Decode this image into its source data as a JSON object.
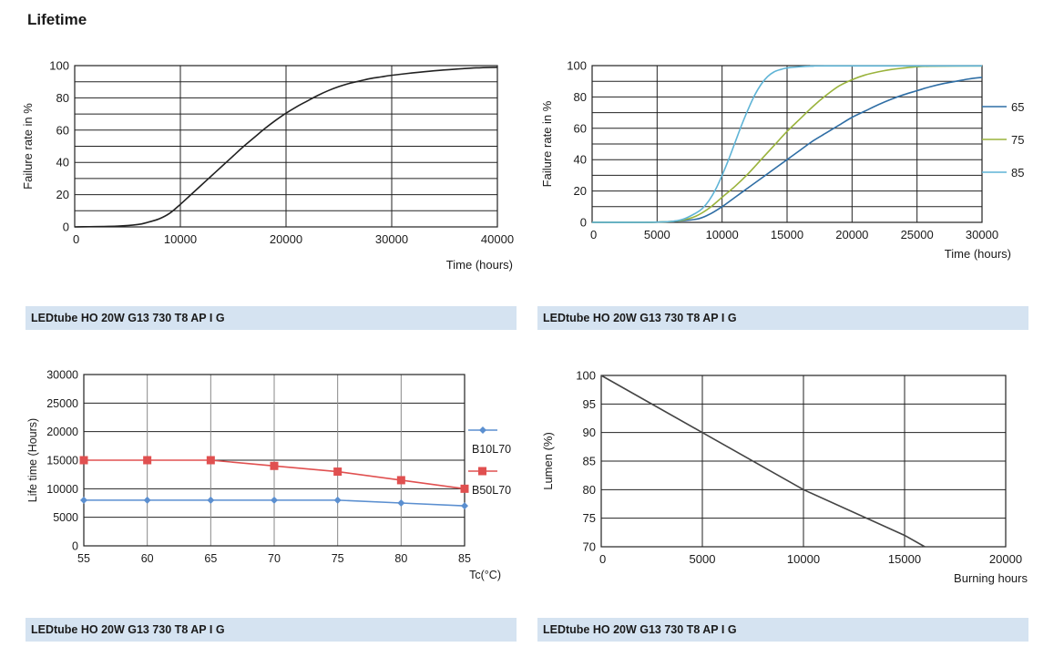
{
  "page_title": "Lifetime",
  "captions": [
    "LEDtube HO 20W G13 730 T8 AP I G",
    "LEDtube HO 20W G13 730 T8 AP I G",
    "LEDtube HO 20W G13 730 T8 AP I G",
    "LEDtube HO 20W G13 730 T8 AP I G"
  ],
  "chart_data": [
    {
      "type": "line",
      "title": "",
      "xlabel": "Time (hours)",
      "ylabel": "Failure rate in %",
      "xlim": [
        0,
        40000
      ],
      "ylim": [
        0,
        100
      ],
      "xticks": [
        0,
        10000,
        20000,
        30000,
        40000
      ],
      "yticks": [
        0,
        20,
        40,
        60,
        80,
        100
      ],
      "grid": true,
      "series": [
        {
          "name": "",
          "color": "#222222",
          "x": [
            0,
            4000,
            6000,
            7000,
            8000,
            9000,
            10000,
            11000,
            12000,
            13000,
            14000,
            15000,
            16000,
            17000,
            18000,
            19000,
            20000,
            21000,
            22000,
            23000,
            24000,
            25000,
            26000,
            27000,
            28000,
            29000,
            30000,
            32000,
            34000,
            36000,
            38000,
            40000
          ],
          "y": [
            0,
            0.5,
            1.5,
            3,
            5,
            8.5,
            14,
            20,
            26,
            32,
            38,
            44,
            50,
            55.5,
            61,
            66,
            70.5,
            74.5,
            78,
            81.5,
            84.5,
            87,
            89,
            90.5,
            92,
            93,
            94,
            95.5,
            96.8,
            97.8,
            98.6,
            99
          ]
        }
      ]
    },
    {
      "type": "line",
      "title": "",
      "xlabel": "Time (hours)",
      "ylabel": "Failure rate in %",
      "xlim": [
        0,
        30000
      ],
      "ylim": [
        0,
        100
      ],
      "xticks": [
        0,
        5000,
        10000,
        15000,
        20000,
        25000,
        30000
      ],
      "yticks": [
        0,
        20,
        40,
        60,
        80,
        100
      ],
      "grid": true,
      "legend": "right",
      "series": [
        {
          "name": "65",
          "color": "#2f6ea5",
          "x": [
            0,
            4000,
            6000,
            8000,
            9000,
            10000,
            11000,
            12000,
            13000,
            14000,
            15000,
            16000,
            17000,
            18000,
            19000,
            20000,
            21000,
            22000,
            23000,
            24000,
            25000,
            26000,
            27000,
            28000,
            29000,
            30000
          ],
          "y": [
            0,
            0,
            0.5,
            2,
            5,
            10,
            16,
            22,
            28,
            34,
            40,
            46,
            52,
            57,
            62,
            67,
            71,
            75,
            78.5,
            81.5,
            84,
            86.5,
            88.5,
            90,
            91.5,
            92.5
          ]
        },
        {
          "name": "75",
          "color": "#9ab33c",
          "x": [
            0,
            4000,
            6000,
            7000,
            8000,
            9000,
            10000,
            11000,
            12000,
            13000,
            14000,
            15000,
            16000,
            17000,
            18000,
            19000,
            20000,
            21000,
            22000,
            23000,
            24000,
            25000,
            26000,
            30000
          ],
          "y": [
            0,
            0,
            0.5,
            1.5,
            4,
            9,
            16,
            23,
            31,
            40,
            49,
            58,
            66,
            74,
            81,
            87,
            91,
            94,
            96,
            97.5,
            98.5,
            99.3,
            99.6,
            99.8
          ]
        },
        {
          "name": "85",
          "color": "#5fb4d6",
          "x": [
            0,
            4000,
            6000,
            7000,
            8000,
            8500,
            9000,
            9500,
            10000,
            10500,
            11000,
            11500,
            12000,
            12500,
            13000,
            13500,
            14000,
            14500,
            15000,
            16000,
            17000,
            18000,
            30000
          ],
          "y": [
            0,
            0,
            0.5,
            2,
            6,
            9,
            14,
            21,
            30,
            40,
            51,
            62,
            72,
            81,
            88,
            93,
            96,
            97.5,
            98.5,
            99.3,
            99.7,
            99.8,
            99.8
          ]
        }
      ]
    },
    {
      "type": "line",
      "title": "",
      "xlabel": "Tc(°C)",
      "ylabel": "Life time (Hours)",
      "ylim": [
        0,
        30000
      ],
      "categories": [
        "55",
        "60",
        "65",
        "70",
        "75",
        "80",
        "85"
      ],
      "yticks": [
        0,
        5000,
        10000,
        15000,
        20000,
        25000,
        30000
      ],
      "grid": true,
      "legend": "right",
      "series": [
        {
          "name": "B10L70",
          "color": "#5b8fd0",
          "marker": "diamond",
          "values": [
            8000,
            8000,
            8000,
            8000,
            8000,
            7500,
            7000
          ]
        },
        {
          "name": "B50L70",
          "color": "#e05050",
          "marker": "square",
          "values": [
            15000,
            15000,
            15000,
            14000,
            13000,
            11500,
            10000
          ]
        }
      ]
    },
    {
      "type": "line",
      "title": "",
      "xlabel": "Burning hours",
      "ylabel": "Lumen (%)",
      "xlim": [
        0,
        20000
      ],
      "ylim": [
        70,
        100
      ],
      "xticks": [
        0,
        5000,
        10000,
        15000,
        20000
      ],
      "yticks": [
        70,
        75,
        80,
        85,
        90,
        95,
        100
      ],
      "grid": true,
      "series": [
        {
          "name": "",
          "color": "#444444",
          "x": [
            0,
            5000,
            10000,
            15000,
            16000
          ],
          "y": [
            100,
            90,
            80,
            72,
            70
          ]
        }
      ]
    }
  ]
}
